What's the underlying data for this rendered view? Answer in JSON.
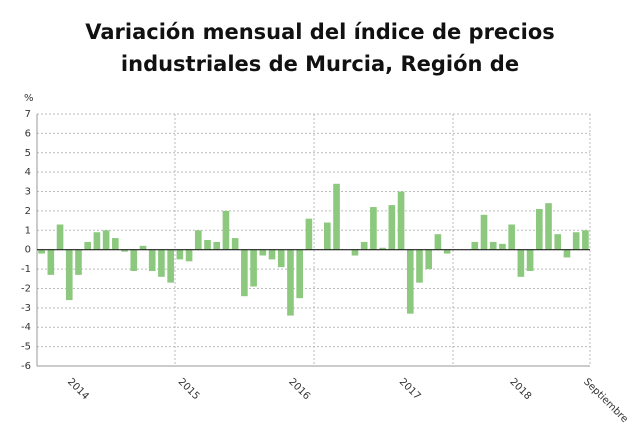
{
  "chart_data": {
    "type": "bar",
    "title": "Variación mensual del índice de precios industriales de Murcia, Región de",
    "y_label": "%",
    "categories": [
      null,
      null,
      null,
      "2014",
      null,
      null,
      null,
      null,
      null,
      null,
      null,
      null,
      null,
      null,
      null,
      "2015",
      null,
      null,
      null,
      null,
      null,
      null,
      null,
      null,
      null,
      null,
      null,
      "2016",
      null,
      null,
      null,
      null,
      null,
      null,
      null,
      null,
      null,
      null,
      null,
      "2017",
      null,
      null,
      null,
      null,
      null,
      null,
      null,
      null,
      null,
      null,
      null,
      "2018",
      null,
      null,
      null,
      null,
      null,
      null,
      null,
      "Septiembre"
    ],
    "values": [
      -0.2,
      -1.3,
      1.3,
      -2.6,
      -1.3,
      0.4,
      0.9,
      1.0,
      0.6,
      -0.1,
      -1.1,
      0.2,
      -1.1,
      -1.4,
      -1.7,
      -0.5,
      -0.6,
      1.0,
      0.5,
      0.4,
      2.0,
      0.6,
      -2.4,
      -1.9,
      -0.3,
      -0.5,
      -0.9,
      -3.4,
      -2.5,
      1.6,
      0,
      1.4,
      3.4,
      0,
      -0.3,
      0.4,
      2.2,
      0.1,
      2.3,
      3.0,
      -3.3,
      -1.7,
      -1.0,
      0.8,
      -0.2,
      0,
      0,
      0.4,
      1.8,
      0.4,
      0.3,
      1.3,
      -1.4,
      -1.1,
      2.1,
      2.4,
      0.8,
      -0.4,
      0.9,
      1.0
    ],
    "color": "#8cc97e",
    "ylim": [
      -6,
      7
    ],
    "yticks": [
      -6,
      -5,
      -4,
      -3,
      -2,
      -1,
      0,
      1,
      2,
      3,
      4,
      5,
      6,
      7
    ],
    "grid": true
  }
}
